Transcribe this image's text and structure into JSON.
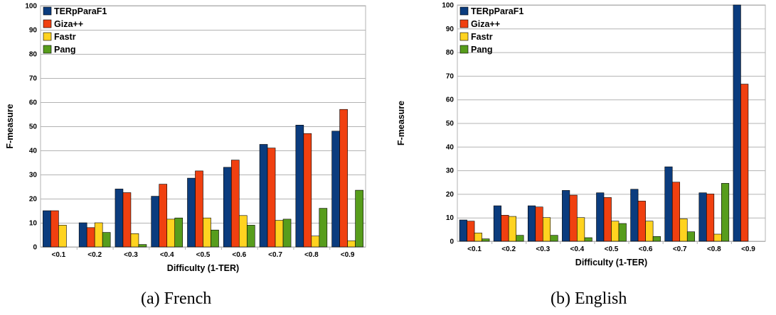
{
  "chart_data": [
    {
      "type": "bar",
      "title": "",
      "caption": "(a) French",
      "xlabel": "Difficulty (1-TER)",
      "ylabel": "F-measure",
      "ylim": [
        0,
        100
      ],
      "yticks": [
        "0",
        "10",
        "20",
        "30",
        "40",
        "50",
        "60",
        "70",
        "80",
        "90",
        "100"
      ],
      "grid": true,
      "legend_position": "top-left",
      "categories": [
        "<0.1",
        "<0.2",
        "<0.3",
        "<0.4",
        "<0.5",
        "<0.6",
        "<0.7",
        "<0.8",
        "<0.9"
      ],
      "series": [
        {
          "name": "TERpParaF1",
          "color": "#0b3c7e",
          "values": [
            15,
            10,
            24,
            21,
            28.5,
            33,
            42.5,
            50.5,
            48
          ]
        },
        {
          "name": "Giza++",
          "color": "#f04010",
          "values": [
            15,
            8,
            22.5,
            26,
            31.5,
            36,
            41,
            47,
            57
          ]
        },
        {
          "name": "Fastr",
          "color": "#ffd320",
          "values": [
            9,
            10,
            5.5,
            11.5,
            12,
            13,
            11,
            4.5,
            2.5
          ]
        },
        {
          "name": "Pang",
          "color": "#579d1c",
          "values": [
            0,
            6,
            1,
            12,
            7,
            9,
            11.5,
            16,
            23.5
          ]
        }
      ]
    },
    {
      "type": "bar",
      "title": "",
      "caption": "(b) English",
      "xlabel": "Difficulty (1-TER)",
      "ylabel": "F-measure",
      "ylim": [
        0,
        100
      ],
      "yticks": [
        "0",
        "10",
        "20",
        "30",
        "40",
        "50",
        "60",
        "70",
        "80",
        "90",
        "100"
      ],
      "grid": true,
      "legend_position": "top-left",
      "categories": [
        "<0.1",
        "<0.2",
        "<0.3",
        "<0.4",
        "<0.5",
        "<0.6",
        "<0.7",
        "<0.8",
        "<0.9"
      ],
      "series": [
        {
          "name": "TERpParaF1",
          "color": "#0b3c7e",
          "values": [
            9,
            15,
            15,
            21.5,
            20.5,
            22,
            31.5,
            20.5,
            100
          ]
        },
        {
          "name": "Giza++",
          "color": "#f04010",
          "values": [
            8.5,
            11,
            14.5,
            19.5,
            18.5,
            17,
            25,
            20,
            66.5
          ]
        },
        {
          "name": "Fastr",
          "color": "#ffd320",
          "values": [
            3.5,
            10.5,
            10,
            10,
            8.5,
            8.5,
            9.5,
            3,
            0
          ]
        },
        {
          "name": "Pang",
          "color": "#579d1c",
          "values": [
            1,
            2.5,
            2.5,
            1.5,
            7.5,
            2,
            4,
            24.5,
            0
          ]
        }
      ]
    }
  ]
}
